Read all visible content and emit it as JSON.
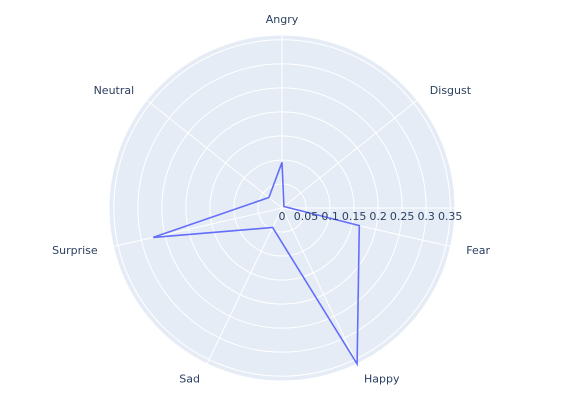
{
  "chart_data": {
    "type": "radar",
    "categories": [
      "Angry",
      "Disgust",
      "Fear",
      "Happy",
      "Sad",
      "Surprise",
      "Neutral"
    ],
    "series": [
      {
        "values": [
          0.095,
          0.005,
          0.165,
          0.36,
          0.045,
          0.275,
          0.035
        ]
      }
    ],
    "radial_range": [
      0,
      0.36
    ],
    "radial_ticks": [
      "0",
      "0.05",
      "0.1",
      "0.15",
      "0.2",
      "0.25",
      "0.3",
      "0.35"
    ],
    "radial_tick_values": [
      0,
      0.05,
      0.1,
      0.15,
      0.2,
      0.25,
      0.3,
      0.35
    ],
    "grid": true,
    "colors": {
      "background": "#e5ecf6",
      "grid": "#ffffff",
      "series": "#636efa",
      "text": "#2a3f5f"
    }
  }
}
